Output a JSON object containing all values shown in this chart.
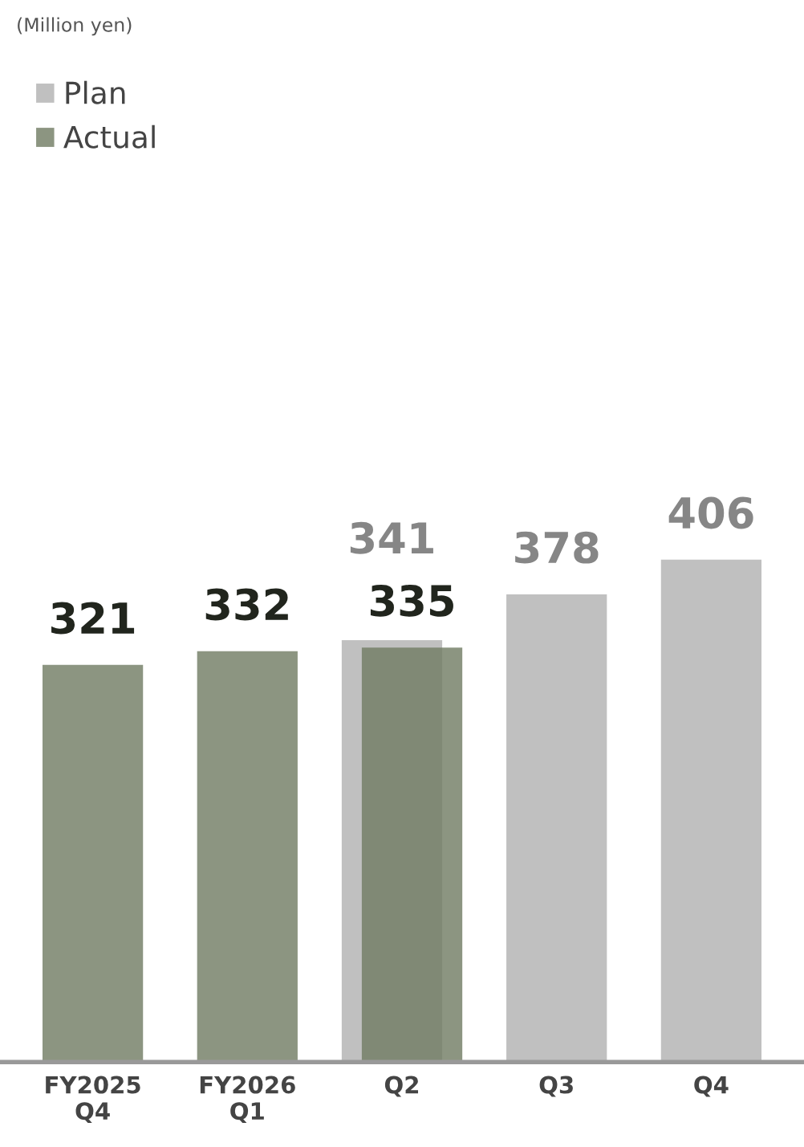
{
  "chart_data": {
    "type": "bar",
    "categories": [
      "FY2025\nQ4",
      "FY2026\nQ1",
      "Q2",
      "Q3",
      "Q4"
    ],
    "series": [
      {
        "name": "Plan",
        "color": "#c0c0c0",
        "values": [
          null,
          null,
          341,
          378,
          406
        ]
      },
      {
        "name": "Actual",
        "color": "#6f7b62",
        "values": [
          321,
          332,
          335,
          null,
          null
        ]
      }
    ],
    "data_labels": true,
    "legend": "top left",
    "grid": false,
    "annotations": [
      "(Million yen)"
    ]
  }
}
